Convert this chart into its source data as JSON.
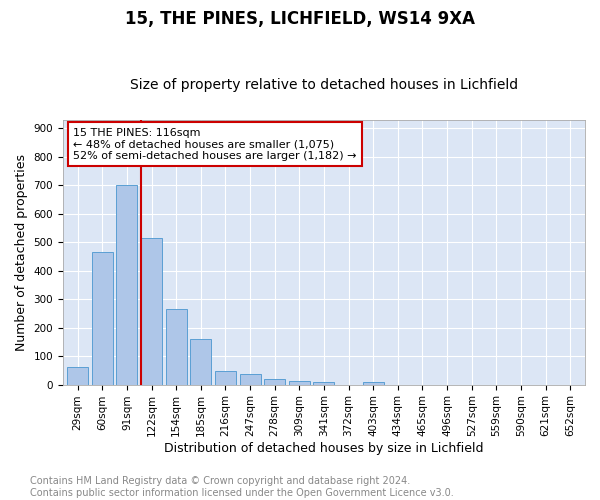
{
  "title1": "15, THE PINES, LICHFIELD, WS14 9XA",
  "title2": "Size of property relative to detached houses in Lichfield",
  "xlabel": "Distribution of detached houses by size in Lichfield",
  "ylabel": "Number of detached properties",
  "bar_labels": [
    "29sqm",
    "60sqm",
    "91sqm",
    "122sqm",
    "154sqm",
    "185sqm",
    "216sqm",
    "247sqm",
    "278sqm",
    "309sqm",
    "341sqm",
    "372sqm",
    "403sqm",
    "434sqm",
    "465sqm",
    "496sqm",
    "527sqm",
    "559sqm",
    "590sqm",
    "621sqm",
    "652sqm"
  ],
  "bar_values": [
    60,
    465,
    700,
    515,
    265,
    160,
    48,
    36,
    18,
    13,
    10,
    0,
    8,
    0,
    0,
    0,
    0,
    0,
    0,
    0,
    0
  ],
  "bar_color": "#aec6e8",
  "bar_edge_color": "#5a9fd4",
  "bg_color": "#dce6f5",
  "grid_color": "#ffffff",
  "vline_color": "#cc0000",
  "vline_x": 2.58,
  "annotation_text": "15 THE PINES: 116sqm\n← 48% of detached houses are smaller (1,075)\n52% of semi-detached houses are larger (1,182) →",
  "annotation_box_color": "#ffffff",
  "annotation_box_edge": "#cc0000",
  "ylim": [
    0,
    930
  ],
  "yticks": [
    0,
    100,
    200,
    300,
    400,
    500,
    600,
    700,
    800,
    900
  ],
  "footer": "Contains HM Land Registry data © Crown copyright and database right 2024.\nContains public sector information licensed under the Open Government Licence v3.0.",
  "title1_fontsize": 12,
  "title2_fontsize": 10,
  "xlabel_fontsize": 9,
  "ylabel_fontsize": 9,
  "tick_fontsize": 7.5,
  "annot_fontsize": 8,
  "footer_fontsize": 7,
  "footer_color": "#888888",
  "fig_bg_color": "#ffffff"
}
